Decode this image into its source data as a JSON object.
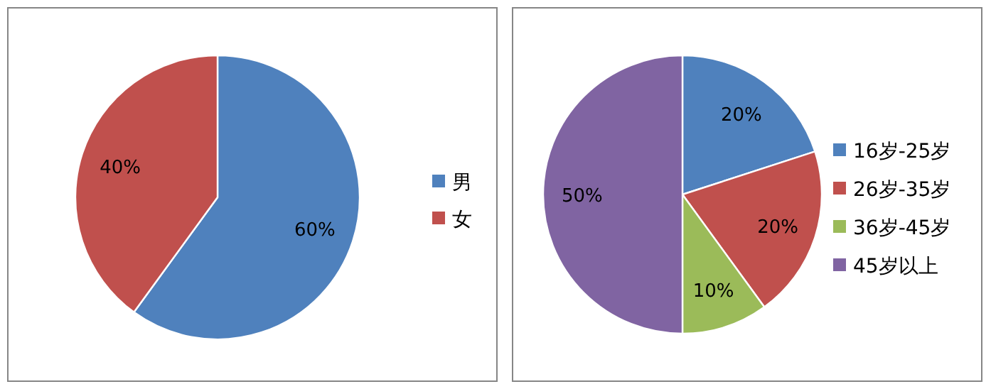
{
  "chart_data": [
    {
      "type": "pie",
      "categories": [
        "男",
        "女"
      ],
      "values": [
        60,
        40
      ],
      "colors": [
        "#4f81bd",
        "#c0504d"
      ],
      "value_labels": [
        "60%",
        "40%"
      ],
      "legend": "right"
    },
    {
      "type": "pie",
      "categories": [
        "16岁-25岁",
        "26岁-35岁",
        "36岁-45岁",
        "45岁以上"
      ],
      "values": [
        20,
        20,
        10,
        50
      ],
      "colors": [
        "#4f81bd",
        "#c0504d",
        "#9bbb59",
        "#8064a2"
      ],
      "value_labels": [
        "20%",
        "20%",
        "10%",
        "50%"
      ],
      "legend": "right"
    }
  ]
}
